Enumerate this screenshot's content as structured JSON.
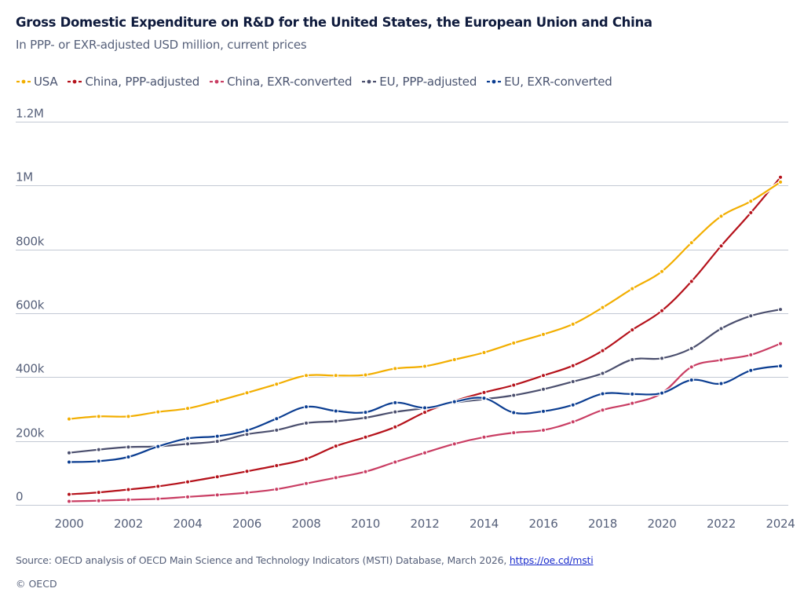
{
  "header": {
    "title": "Gross Domestic Expenditure on R&D for the United States, the European Union and China",
    "subtitle": "In PPP- or EXR-adjusted USD million, current prices"
  },
  "footer": {
    "source_text": "Source: OECD analysis of OECD Main Science and Technology Indicators (MSTI) Database, March 2026, ",
    "source_link": "https://oe.cd/msti",
    "copyright": "© OECD"
  },
  "chart_data": {
    "type": "line",
    "title": "Gross Domestic Expenditure on R&D for the United States, the European Union and China",
    "subtitle": "In PPP- or EXR-adjusted USD million, current prices",
    "xlabel": "",
    "ylabel": "",
    "x": [
      2000,
      2001,
      2002,
      2003,
      2004,
      2005,
      2006,
      2007,
      2008,
      2009,
      2010,
      2011,
      2012,
      2013,
      2014,
      2015,
      2016,
      2017,
      2018,
      2019,
      2020,
      2021,
      2022,
      2023,
      2024
    ],
    "x_tick_labels": [
      "2000",
      "2002",
      "2004",
      "2006",
      "2008",
      "2010",
      "2012",
      "2014",
      "2016",
      "2018",
      "2020",
      "2022",
      "2024"
    ],
    "x_tick_values": [
      2000,
      2002,
      2004,
      2006,
      2008,
      2010,
      2012,
      2014,
      2016,
      2018,
      2020,
      2022,
      2024
    ],
    "xlim": [
      1999,
      2024
    ],
    "ylim": [
      0,
      1200000
    ],
    "y_tick_values": [
      0,
      200000,
      400000,
      600000,
      800000,
      1000000,
      1200000
    ],
    "y_tick_labels": [
      "0",
      "200k",
      "400k",
      "600k",
      "800k",
      "1M",
      "1.2M"
    ],
    "grid": true,
    "legend_position": "top-left",
    "series": [
      {
        "name": "USA",
        "color": "#f2ae00",
        "values": [
          269000,
          277000,
          277000,
          291000,
          302000,
          325000,
          351000,
          378000,
          405000,
          405000,
          407000,
          427000,
          434000,
          455000,
          477000,
          507000,
          534000,
          566000,
          618000,
          677000,
          731000,
          821000,
          904000,
          951000,
          1011000
        ]
      },
      {
        "name": "China, PPP-adjusted",
        "color": "#b5121b",
        "values": [
          33000,
          39000,
          48000,
          58000,
          72000,
          88000,
          105000,
          123000,
          144000,
          184000,
          212000,
          244000,
          290000,
          325000,
          352000,
          375000,
          405000,
          436000,
          483000,
          548000,
          608000,
          700000,
          811000,
          915000,
          1026000
        ]
      },
      {
        "name": "China, EXR-converted",
        "color": "#c93d63",
        "values": [
          11000,
          13000,
          16000,
          19000,
          25000,
          31000,
          38000,
          49000,
          67000,
          85000,
          104000,
          134000,
          163000,
          191000,
          212000,
          226000,
          234000,
          260000,
          297000,
          318000,
          350000,
          432000,
          454000,
          470000,
          505000
        ]
      },
      {
        "name": "EU, PPP-adjusted",
        "color": "#4b4f6e",
        "values": [
          163000,
          173000,
          181000,
          183000,
          191000,
          199000,
          221000,
          234000,
          256000,
          262000,
          273000,
          291000,
          303000,
          320000,
          331000,
          343000,
          362000,
          386000,
          412000,
          455000,
          459000,
          490000,
          552000,
          592000,
          612000
        ]
      },
      {
        "name": "EU, EXR-converted",
        "color": "#0b3d91",
        "values": [
          134000,
          137000,
          150000,
          183000,
          208000,
          215000,
          233000,
          270000,
          307000,
          294000,
          290000,
          320000,
          304000,
          323000,
          334000,
          289000,
          293000,
          313000,
          348000,
          347000,
          350000,
          391000,
          380000,
          421000,
          435000
        ]
      }
    ]
  },
  "colors": {
    "gridline": "#c3c9d4",
    "axis_text": "#56607a",
    "title_text": "#0f1b3d",
    "link": "#1a2ccc"
  }
}
